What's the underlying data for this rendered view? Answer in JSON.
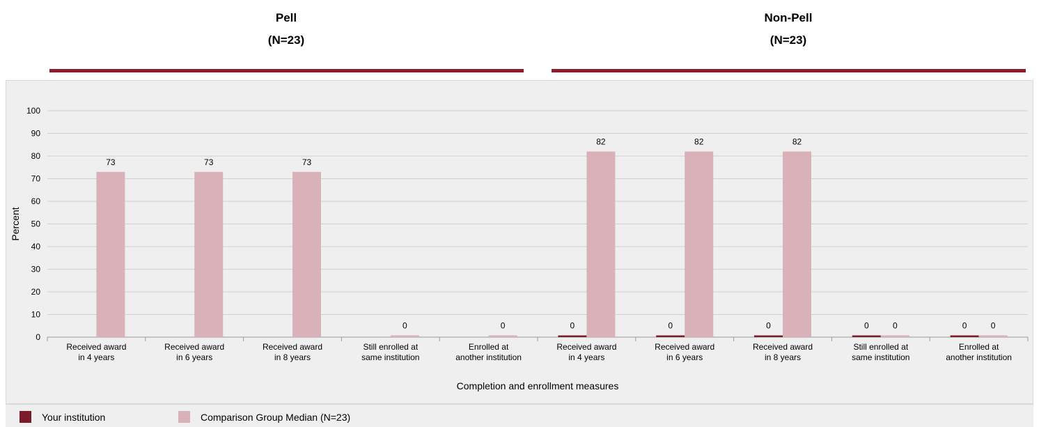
{
  "groups": [
    {
      "name": "Pell",
      "n_label": "(N=23)"
    },
    {
      "name": "Non-Pell",
      "n_label": "(N=23)"
    }
  ],
  "legend": [
    {
      "label": "Your institution",
      "color": "#7b1c2a"
    },
    {
      "label": "Comparison Group Median (N=23)",
      "color": "#d8b2b8"
    }
  ],
  "chart_data": {
    "type": "bar",
    "title": "",
    "xlabel": "Completion and enrollment measures",
    "ylabel": "Percent",
    "ylim": [
      0,
      100
    ],
    "yticks": [
      0,
      10,
      20,
      30,
      40,
      50,
      60,
      70,
      80,
      90,
      100
    ],
    "grid": true,
    "legend_position": "bottom",
    "categories": [
      [
        "Received award",
        "in 4 years"
      ],
      [
        "Received award",
        "in 6 years"
      ],
      [
        "Received award",
        "in 8 years"
      ],
      [
        "Still enrolled at",
        "same institution"
      ],
      [
        "Enrolled at",
        "another institution"
      ],
      [
        "Received award",
        "in 4 years"
      ],
      [
        "Received award",
        "in 6 years"
      ],
      [
        "Received award",
        "in 8 years"
      ],
      [
        "Still enrolled at",
        "same institution"
      ],
      [
        "Enrolled at",
        "another institution"
      ]
    ],
    "series": [
      {
        "name": "Your institution",
        "color": "#7b1c2a",
        "values": [
          null,
          null,
          null,
          null,
          null,
          0,
          0,
          0,
          0,
          0
        ]
      },
      {
        "name": "Comparison Group Median (N=23)",
        "color": "#d8b2b8",
        "values": [
          73,
          73,
          73,
          0,
          0,
          82,
          82,
          82,
          0,
          0
        ]
      }
    ]
  }
}
